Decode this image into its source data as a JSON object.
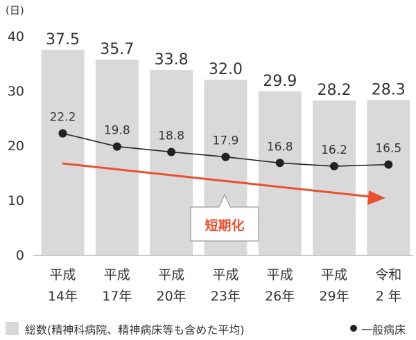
{
  "chart_data": {
    "type": "bar",
    "unit_label": "(日)",
    "ylim": [
      0,
      40
    ],
    "y_ticks": [
      "0",
      "10",
      "20",
      "30",
      "40"
    ],
    "categories": [
      [
        "平成",
        "14年"
      ],
      [
        "平成",
        "17年"
      ],
      [
        "平成",
        "20年"
      ],
      [
        "平成",
        "23年"
      ],
      [
        "平成",
        "26年"
      ],
      [
        "平成",
        "29年"
      ],
      [
        "令和",
        "2 年"
      ]
    ],
    "series": [
      {
        "name": "総数(精神科病院、精神病床等も含めた平均)",
        "type": "bar",
        "values": [
          37.5,
          35.7,
          33.8,
          32.0,
          29.9,
          28.2,
          28.3
        ],
        "labels": [
          "37.5",
          "35.7",
          "33.8",
          "32.0",
          "29.9",
          "28.2",
          "28.3"
        ],
        "color": "#d9d9d9"
      },
      {
        "name": "一般病床",
        "type": "line",
        "values": [
          22.2,
          19.8,
          18.8,
          17.9,
          16.8,
          16.2,
          16.5
        ],
        "labels": [
          "22.2",
          "19.8",
          "18.8",
          "17.9",
          "16.8",
          "16.2",
          "16.5"
        ],
        "color": "#222222"
      }
    ],
    "trend_annotation": {
      "label": "短期化",
      "color": "#e8502f"
    },
    "legend_position": "bottom",
    "grid": false
  }
}
